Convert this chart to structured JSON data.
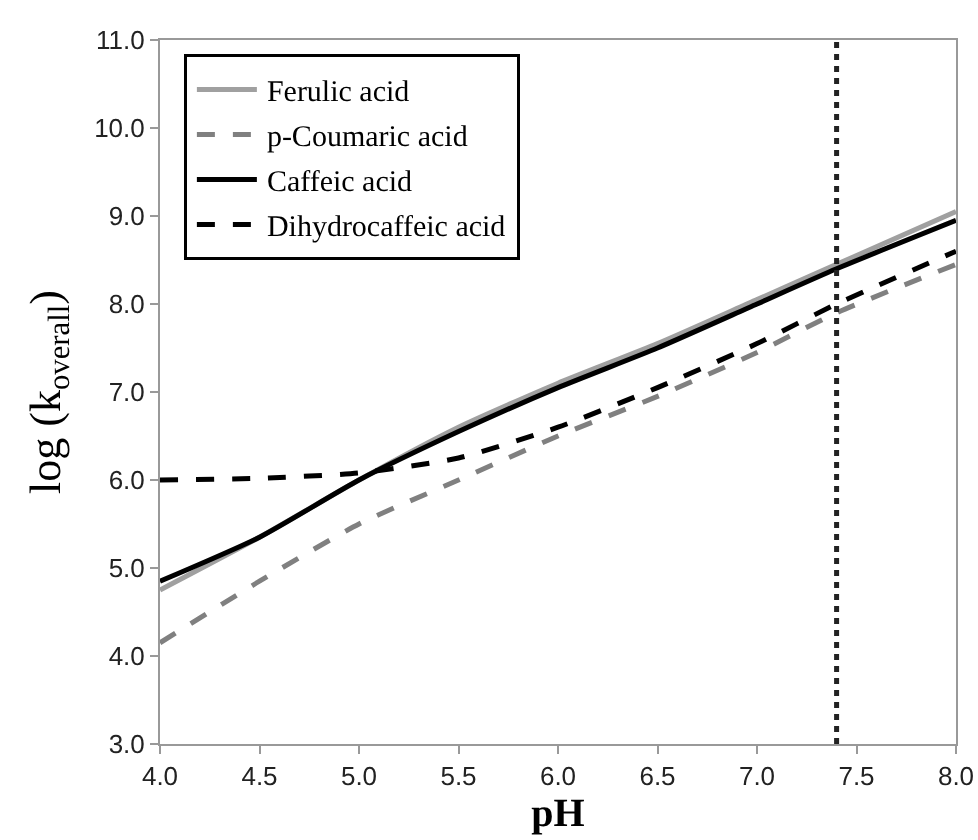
{
  "chart_data": {
    "type": "line",
    "xlabel": "pH",
    "ylabel": "log (k$_{overall}$)",
    "x": [
      4.0,
      4.5,
      5.0,
      5.5,
      6.0,
      6.5,
      7.0,
      7.4,
      8.0
    ],
    "xlim": [
      4.0,
      8.0
    ],
    "xticks": [
      {
        "value": 4,
        "label": "4.0"
      },
      4.5,
      {
        "value": 5,
        "label": "5.0"
      },
      5.5,
      {
        "value": 6,
        "label": "6.0"
      },
      6.5,
      {
        "value": 7,
        "label": "7.0"
      },
      7.5,
      {
        "value": 8,
        "label": "8.0"
      }
    ],
    "ylim": [
      3.0,
      11.0
    ],
    "yticks": [
      {
        "value": 3,
        "label": "3.0"
      },
      {
        "value": 4,
        "label": "4.0"
      },
      {
        "value": 5,
        "label": "5.0"
      },
      {
        "value": 6,
        "label": "6.0"
      },
      {
        "value": 7,
        "label": "7.0"
      },
      {
        "value": 8,
        "label": "8.0"
      },
      {
        "value": 9,
        "label": "9.0"
      },
      {
        "value": 10,
        "label": "10.0"
      },
      {
        "value": 11,
        "label": "11.0"
      }
    ],
    "grid": false,
    "legend": "top left",
    "marker": "none",
    "series": [
      {
        "name": "Ferulic acid",
        "color": "#a0a0a0",
        "line_style": "solid",
        "values": [
          4.75,
          5.35,
          6.0,
          6.6,
          7.1,
          7.55,
          8.05,
          8.45,
          9.05
        ]
      },
      {
        "name": "p-Coumaric acid",
        "color": "#808080",
        "line_style": "dashed",
        "values": [
          4.15,
          4.85,
          5.5,
          6.0,
          6.5,
          6.95,
          7.45,
          7.9,
          8.45
        ]
      },
      {
        "name": "Caffeic acid",
        "color": "#000000",
        "line_style": "solid",
        "values": [
          4.85,
          5.35,
          6.0,
          6.55,
          7.05,
          7.5,
          8.0,
          8.4,
          8.95
        ]
      },
      {
        "name": "Dihydrocaffeic acid",
        "color": "#000000",
        "line_style": "dashed",
        "values": [
          6.0,
          6.02,
          6.08,
          6.25,
          6.6,
          7.05,
          7.55,
          8.0,
          8.6
        ]
      }
    ],
    "ref_lines": [
      {
        "axis": "x",
        "value": 7.4,
        "color": "#222222",
        "line_style": "dotted"
      }
    ]
  }
}
